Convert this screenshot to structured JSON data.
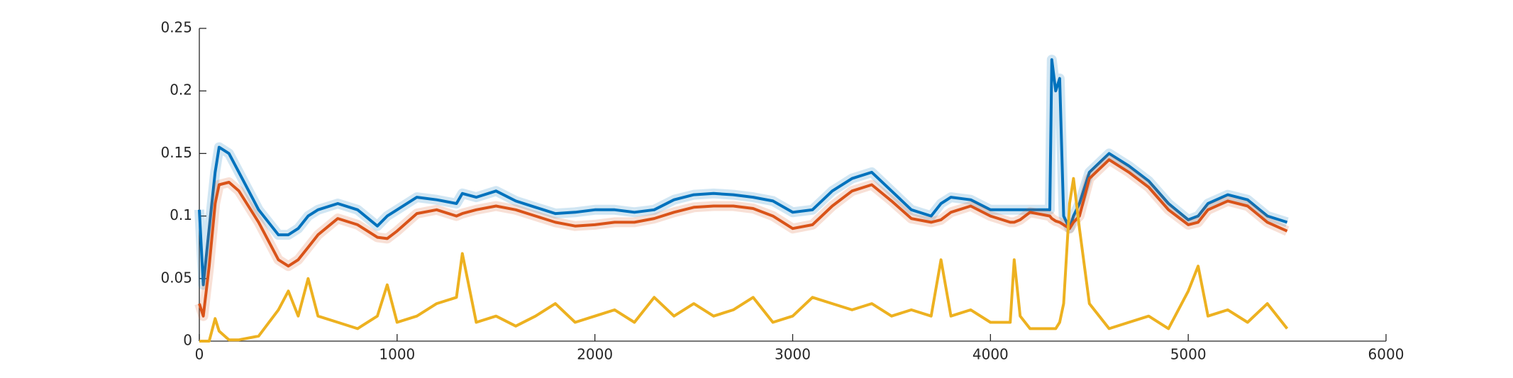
{
  "chart_data": {
    "type": "line",
    "x": [
      0,
      20,
      50,
      80,
      100,
      150,
      200,
      300,
      400,
      450,
      500,
      550,
      600,
      700,
      800,
      900,
      950,
      1000,
      1100,
      1200,
      1300,
      1330,
      1400,
      1500,
      1600,
      1700,
      1800,
      1900,
      2000,
      2100,
      2200,
      2300,
      2400,
      2500,
      2600,
      2700,
      2800,
      2900,
      3000,
      3100,
      3200,
      3300,
      3400,
      3500,
      3600,
      3700,
      3750,
      3800,
      3900,
      4000,
      4100,
      4120,
      4150,
      4200,
      4300,
      4310,
      4330,
      4350,
      4370,
      4400,
      4420,
      4450,
      4500,
      4600,
      4700,
      4800,
      4900,
      5000,
      5050,
      5100,
      5200,
      5300,
      5400,
      5500
    ],
    "series": [
      {
        "color": "#0072bd",
        "values": [
          0.105,
          0.045,
          0.09,
          0.135,
          0.155,
          0.15,
          0.135,
          0.105,
          0.085,
          0.085,
          0.09,
          0.1,
          0.105,
          0.11,
          0.105,
          0.092,
          0.1,
          0.105,
          0.115,
          0.113,
          0.11,
          0.118,
          0.115,
          0.12,
          0.112,
          0.107,
          0.102,
          0.103,
          0.105,
          0.105,
          0.103,
          0.105,
          0.113,
          0.117,
          0.118,
          0.117,
          0.115,
          0.112,
          0.103,
          0.105,
          0.12,
          0.13,
          0.135,
          0.12,
          0.105,
          0.1,
          0.11,
          0.115,
          0.113,
          0.105,
          0.105,
          0.105,
          0.105,
          0.105,
          0.105,
          0.225,
          0.2,
          0.21,
          0.1,
          0.09,
          0.1,
          0.11,
          0.135,
          0.15,
          0.14,
          0.128,
          0.11,
          0.097,
          0.1,
          0.11,
          0.117,
          0.113,
          0.1,
          0.095
        ]
      },
      {
        "color": "#d95319",
        "values": [
          0.03,
          0.02,
          0.06,
          0.11,
          0.125,
          0.127,
          0.12,
          0.095,
          0.065,
          0.06,
          0.065,
          0.075,
          0.085,
          0.098,
          0.093,
          0.083,
          0.082,
          0.088,
          0.102,
          0.105,
          0.1,
          0.102,
          0.105,
          0.108,
          0.105,
          0.1,
          0.095,
          0.092,
          0.093,
          0.095,
          0.095,
          0.098,
          0.103,
          0.107,
          0.108,
          0.108,
          0.106,
          0.1,
          0.09,
          0.093,
          0.108,
          0.12,
          0.125,
          0.112,
          0.098,
          0.095,
          0.097,
          0.103,
          0.108,
          0.1,
          0.095,
          0.095,
          0.097,
          0.103,
          0.1,
          0.098,
          0.096,
          0.095,
          0.093,
          0.09,
          0.095,
          0.1,
          0.13,
          0.145,
          0.135,
          0.123,
          0.105,
          0.093,
          0.095,
          0.105,
          0.112,
          0.108,
          0.095,
          0.088
        ]
      },
      {
        "color": "#edb120",
        "values": [
          0.0,
          0.0,
          0.0,
          0.018,
          0.008,
          0.001,
          0.001,
          0.004,
          0.025,
          0.04,
          0.02,
          0.05,
          0.02,
          0.015,
          0.01,
          0.02,
          0.045,
          0.015,
          0.02,
          0.03,
          0.035,
          0.07,
          0.015,
          0.02,
          0.012,
          0.02,
          0.03,
          0.015,
          0.02,
          0.025,
          0.015,
          0.035,
          0.02,
          0.03,
          0.02,
          0.025,
          0.035,
          0.015,
          0.02,
          0.035,
          0.03,
          0.025,
          0.03,
          0.02,
          0.025,
          0.02,
          0.065,
          0.02,
          0.025,
          0.015,
          0.015,
          0.065,
          0.02,
          0.01,
          0.01,
          0.01,
          0.01,
          0.015,
          0.03,
          0.11,
          0.13,
          0.09,
          0.03,
          0.01,
          0.015,
          0.02,
          0.01,
          0.04,
          0.06,
          0.02,
          0.025,
          0.015,
          0.03,
          0.01
        ]
      }
    ],
    "xlim": [
      0,
      6000
    ],
    "xticks": [
      0,
      1000,
      2000,
      3000,
      4000,
      5000,
      6000
    ],
    "ylim": [
      0,
      0.25
    ],
    "yticks": [
      0,
      0.05,
      0.1,
      0.15,
      0.2,
      0.25
    ]
  }
}
